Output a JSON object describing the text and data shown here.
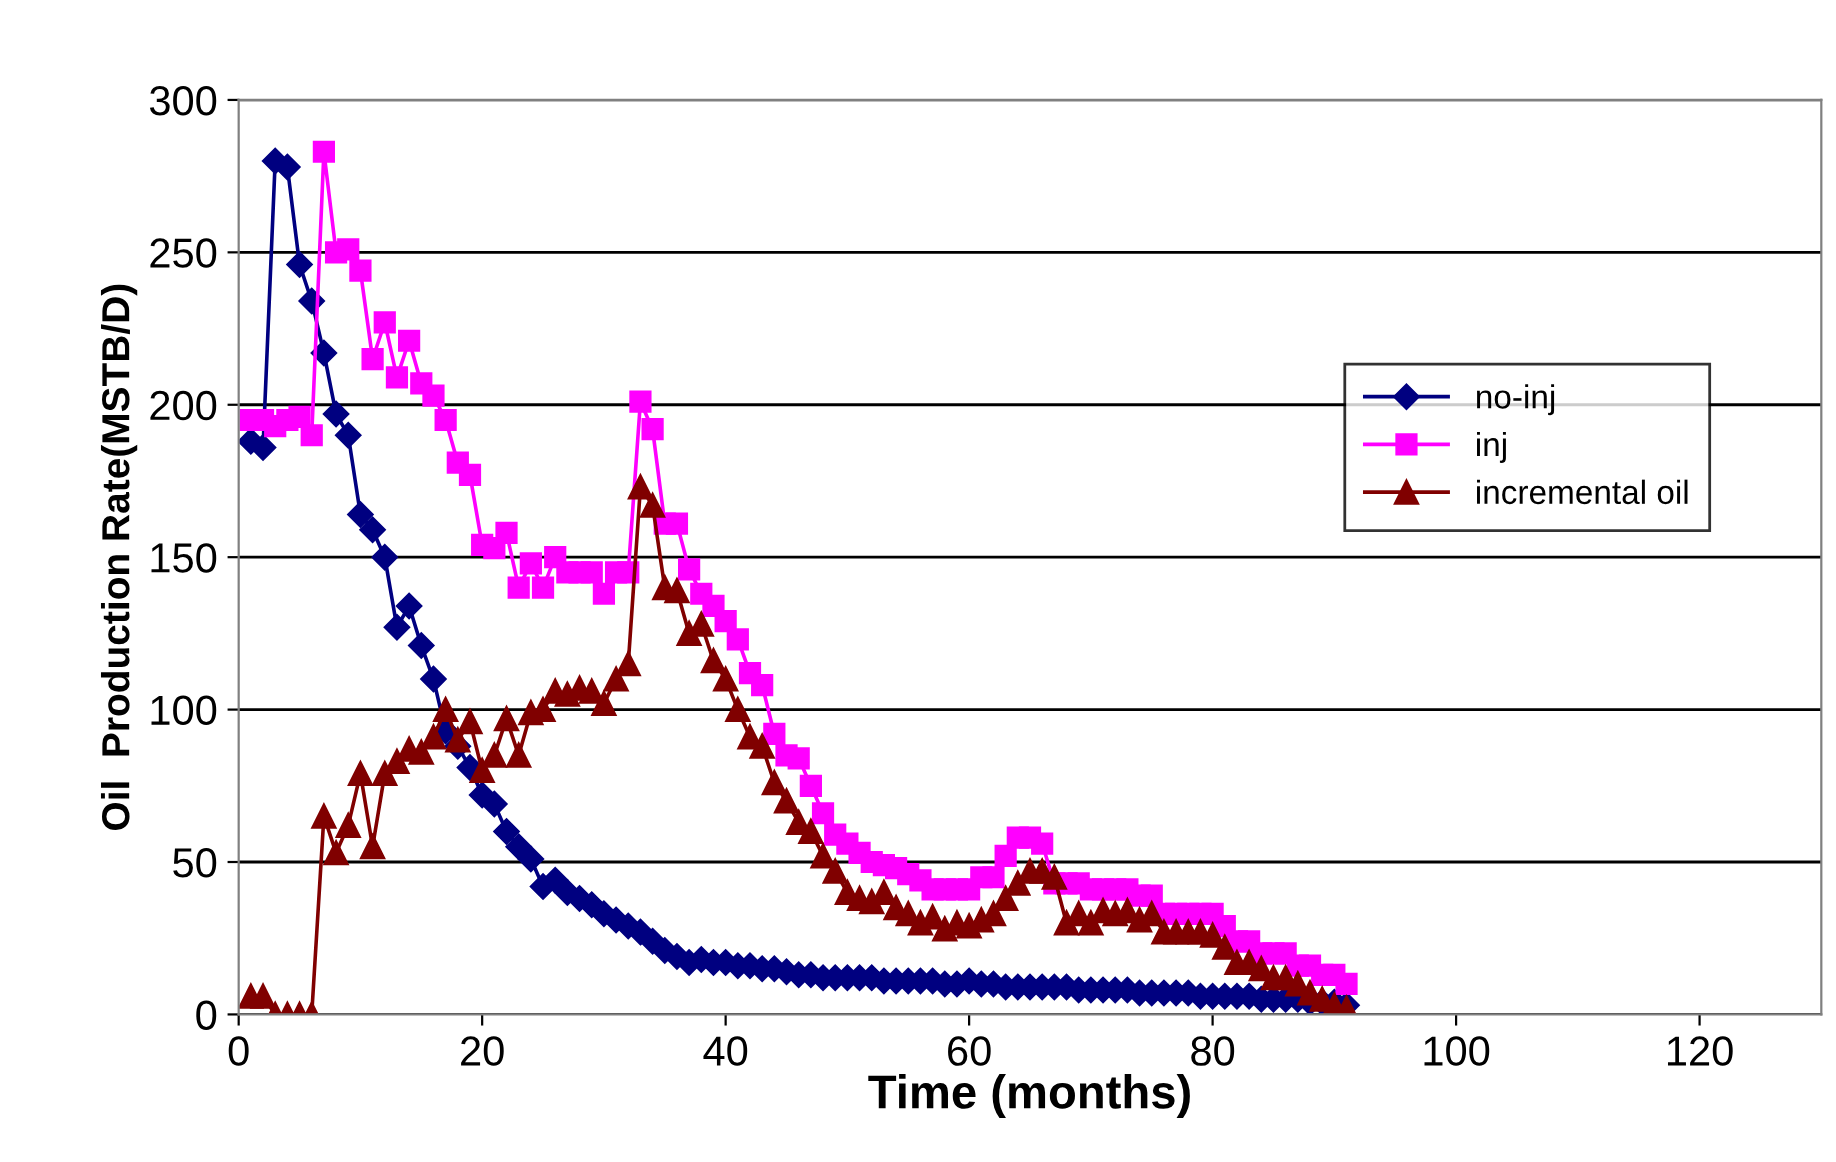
{
  "chart_data": {
    "type": "line",
    "xlabel": "Time (months)",
    "ylabel": "Oil  Production Rate(MSTB/D)",
    "x": [
      1,
      2,
      3,
      4,
      5,
      6,
      7,
      8,
      9,
      10,
      11,
      12,
      13,
      14,
      15,
      16,
      17,
      18,
      19,
      20,
      21,
      22,
      23,
      24,
      25,
      26,
      27,
      28,
      29,
      30,
      31,
      32,
      33,
      34,
      35,
      36,
      37,
      38,
      39,
      40,
      41,
      42,
      43,
      44,
      45,
      46,
      47,
      48,
      49,
      50,
      51,
      52,
      53,
      54,
      55,
      56,
      57,
      58,
      59,
      60,
      61,
      62,
      63,
      64,
      65,
      66,
      67,
      68,
      69,
      70,
      71,
      72,
      73,
      74,
      75,
      76,
      77,
      78,
      79,
      80,
      81,
      82,
      83,
      84,
      85,
      86,
      87,
      88,
      89,
      90,
      91
    ],
    "series": [
      {
        "name": "no-inj",
        "color": "#000080",
        "marker": "diamond",
        "values": [
          188,
          186,
          280,
          278,
          246,
          234,
          217,
          197,
          190,
          164,
          159,
          150,
          127,
          134,
          121,
          110,
          93,
          88,
          81,
          72,
          69,
          60,
          55,
          51,
          42,
          44,
          40,
          38,
          36,
          33,
          31,
          29,
          27,
          24,
          21,
          19,
          17,
          18,
          17,
          17,
          16,
          16,
          15,
          15,
          14,
          13,
          13,
          12,
          12,
          12,
          12,
          12,
          11,
          11,
          11,
          11,
          11,
          10,
          10,
          11,
          10,
          10,
          9,
          9,
          9,
          9,
          9,
          9,
          8,
          8,
          8,
          8,
          8,
          7,
          7,
          7,
          7,
          7,
          6,
          6,
          6,
          6,
          6,
          5,
          5,
          5,
          5,
          4,
          4,
          4,
          3
        ]
      },
      {
        "name": "inj",
        "color": "#ff00ff",
        "marker": "square",
        "values": [
          195,
          195,
          193,
          195,
          196,
          190,
          283,
          250,
          251,
          244,
          215,
          227,
          209,
          221,
          207,
          203,
          195,
          181,
          177,
          154,
          153,
          158,
          140,
          148,
          140,
          150,
          145,
          145,
          145,
          138,
          145,
          145,
          201,
          192,
          161,
          161,
          146,
          138,
          134,
          129,
          123,
          112,
          108,
          92,
          85,
          84,
          75,
          66,
          59,
          56,
          53,
          50,
          49,
          48,
          46,
          44,
          41,
          41,
          41,
          41,
          45,
          45,
          52,
          58,
          58,
          56,
          43,
          43,
          43,
          41,
          41,
          41,
          41,
          39,
          39,
          33,
          33,
          33,
          33,
          33,
          29,
          24,
          24,
          20,
          20,
          20,
          16,
          16,
          13,
          13,
          10
        ]
      },
      {
        "name": "incremental oil",
        "color": "#800000",
        "marker": "triangle",
        "values": [
          6,
          6,
          0,
          0,
          0,
          0,
          65,
          53,
          62,
          79,
          55,
          79,
          83,
          87,
          86,
          91,
          100,
          90,
          96,
          80,
          85,
          97,
          85,
          99,
          100,
          106,
          105,
          107,
          106,
          102,
          110,
          115,
          173,
          167,
          140,
          139,
          125,
          128,
          116,
          110,
          100,
          91,
          88,
          76,
          70,
          63,
          60,
          52,
          47,
          40,
          38,
          37,
          40,
          35,
          33,
          30,
          32,
          28,
          30,
          29,
          31,
          33,
          38,
          43,
          47,
          47,
          45,
          30,
          33,
          30,
          34,
          33,
          34,
          31,
          33,
          27,
          27,
          27,
          27,
          26,
          22,
          17,
          17,
          15,
          12,
          12,
          10,
          7,
          5,
          3,
          2
        ]
      }
    ],
    "xlim": [
      0,
      130
    ],
    "xticks": [
      0,
      20,
      40,
      60,
      80,
      100,
      120
    ],
    "ylim": [
      0,
      300
    ],
    "yticks": [
      0,
      50,
      100,
      150,
      200,
      250,
      300
    ],
    "grid": "y",
    "legend": "right",
    "line_style": "solid"
  }
}
